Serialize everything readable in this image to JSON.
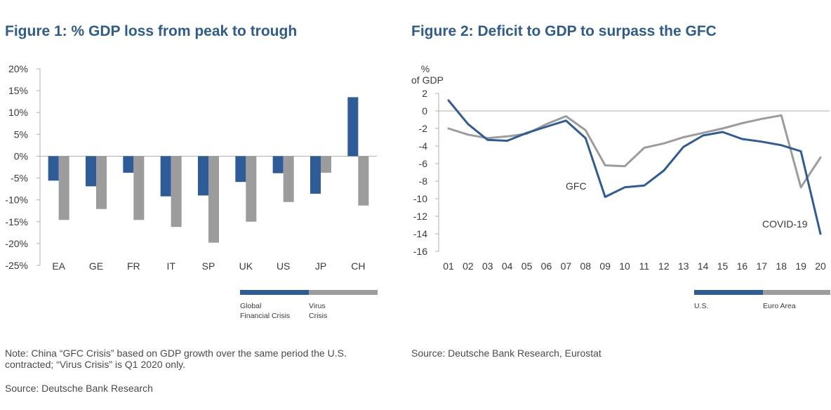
{
  "figure1": {
    "title": "Figure 1: % GDP loss from peak to trough",
    "note": "Note: China “GFC Crisis” based on GDP growth over the same period the U.S. contracted; “Virus Crisis” is Q1 2020 only.",
    "source": "Source: Deutsche Bank Research",
    "legend": [
      {
        "label_line1": "Global",
        "label_line2": "Financial Crisis"
      },
      {
        "label_line1": "Virus",
        "label_line2": "Crisis"
      }
    ]
  },
  "figure2": {
    "title": "Figure 2: Deficit to GDP to surpass the GFC",
    "source": "Source: Deutsche Bank Research, Eurostat",
    "legend": [
      {
        "label": "U.S."
      },
      {
        "label": "Euro Area"
      }
    ]
  },
  "colors": {
    "series_blue": "#2e5c99",
    "series_gray": "#9c9c9c",
    "title_blue": "#2e5c8f",
    "axis": "#b0b0b0"
  },
  "chart_data": [
    {
      "type": "bar",
      "categories": [
        "EA",
        "GE",
        "FR",
        "IT",
        "SP",
        "UK",
        "US",
        "JP",
        "CH"
      ],
      "series": [
        {
          "name": "Global Financial Crisis",
          "values": [
            -5.6,
            -6.9,
            -3.8,
            -9.2,
            -9.0,
            -5.9,
            -3.9,
            -8.6,
            13.5
          ]
        },
        {
          "name": "Virus Crisis",
          "values": [
            -14.6,
            -12.1,
            -14.6,
            -16.2,
            -19.8,
            -15.0,
            -10.5,
            -3.8,
            -11.3
          ]
        }
      ],
      "ylim": [
        -25,
        20
      ],
      "yticks": [
        "-25%",
        "-20%",
        "-15%",
        "-10%",
        "-5%",
        "0%",
        "5%",
        "10%",
        "15%",
        "20%"
      ],
      "ytick_values": [
        -25,
        -20,
        -15,
        -10,
        -5,
        0,
        5,
        10,
        15,
        20
      ],
      "legend_position": "bottom-right",
      "grid": false
    },
    {
      "type": "line",
      "x": [
        "01",
        "02",
        "03",
        "04",
        "05",
        "06",
        "07",
        "08",
        "09",
        "10",
        "11",
        "12",
        "13",
        "14",
        "15",
        "16",
        "17",
        "18",
        "19",
        "20"
      ],
      "series": [
        {
          "name": "U.S.",
          "values": [
            1.2,
            -1.5,
            -3.3,
            -3.4,
            -2.5,
            -1.8,
            -1.1,
            -3.1,
            -9.8,
            -8.7,
            -8.5,
            -6.8,
            -4.1,
            -2.8,
            -2.4,
            -3.2,
            -3.5,
            -3.9,
            -4.6,
            -14.0
          ]
        },
        {
          "name": "Euro Area",
          "values": [
            -2.0,
            -2.7,
            -3.1,
            -2.9,
            -2.6,
            -1.5,
            -0.6,
            -2.2,
            -6.2,
            -6.3,
            -4.2,
            -3.7,
            -3.0,
            -2.5,
            -2.0,
            -1.4,
            -0.9,
            -0.5,
            -8.7,
            -5.3
          ]
        }
      ],
      "ylim": [
        -16,
        2
      ],
      "yticks": [
        "2",
        "0",
        "-2",
        "-4",
        "-6",
        "-8",
        "-10",
        "-12",
        "-14",
        "-16"
      ],
      "ytick_values": [
        2,
        0,
        -2,
        -4,
        -6,
        -8,
        -10,
        -12,
        -14,
        -16
      ],
      "ylabel_line1": "%",
      "ylabel_line2": "of GDP",
      "annotations": [
        "GFC",
        "COVID-19"
      ],
      "legend_position": "bottom-right",
      "grid": false
    }
  ]
}
